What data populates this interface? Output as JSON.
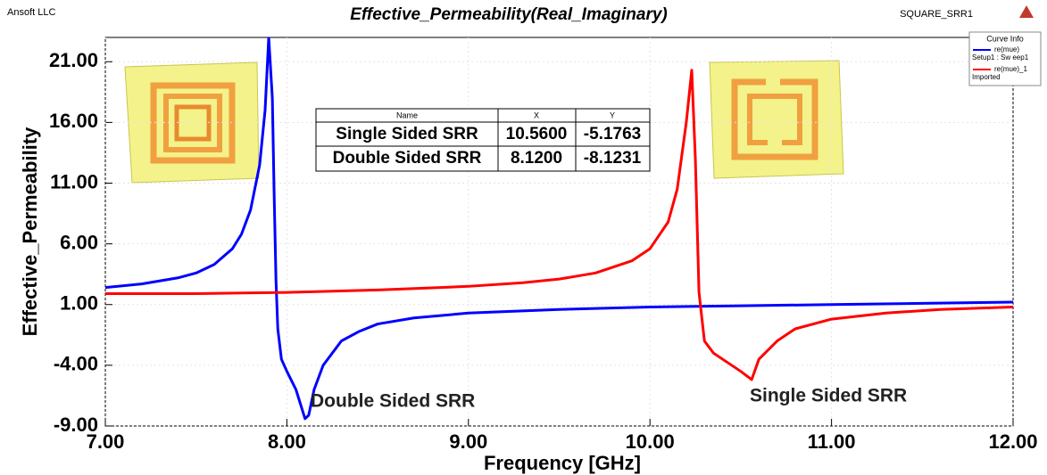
{
  "chart_data": {
    "type": "line",
    "company": "Ansoft LLC",
    "title": "Effective_Permeability(Real_Imaginary)",
    "design": "SQUARE_SRR1",
    "x_label": "Frequency [GHz]",
    "y_label": "Effective_Permeability",
    "xlim": [
      7,
      12
    ],
    "ylim": [
      -9,
      23
    ],
    "xticks": [
      {
        "value": 7,
        "label": "7.00"
      },
      {
        "value": 8,
        "label": "8.00"
      },
      {
        "value": 9,
        "label": "9.00"
      },
      {
        "value": 10,
        "label": "10.00"
      },
      {
        "value": 11,
        "label": "11.00"
      },
      {
        "value": 12,
        "label": "12.00"
      }
    ],
    "yticks": [
      {
        "value": -9,
        "label": "-9.00"
      },
      {
        "value": -4,
        "label": "-4.00"
      },
      {
        "value": 1,
        "label": "1.00"
      },
      {
        "value": 6,
        "label": "6.00"
      },
      {
        "value": 11,
        "label": "11.00"
      },
      {
        "value": 16,
        "label": "16.00"
      },
      {
        "value": 21,
        "label": "21.00"
      }
    ],
    "grid": true,
    "legend_title": "Curve Info",
    "legend_position": "top-right",
    "series": [
      {
        "name": "re(mue)",
        "source": "Setup1 : Sw eep1",
        "color": "#0000ff",
        "x": [
          7.0,
          7.2,
          7.4,
          7.5,
          7.6,
          7.7,
          7.75,
          7.8,
          7.85,
          7.88,
          7.9,
          7.92,
          7.93,
          7.94,
          7.95,
          7.97,
          8.0,
          8.05,
          8.1,
          8.12,
          8.15,
          8.2,
          8.3,
          8.4,
          8.5,
          8.7,
          9.0,
          9.5,
          10.0,
          10.5,
          11.0,
          11.5,
          12.0
        ],
        "values": [
          2.4,
          2.7,
          3.2,
          3.6,
          4.3,
          5.6,
          6.8,
          8.8,
          12.5,
          17,
          23,
          18,
          10,
          3,
          -1,
          -3.5,
          -4.5,
          -6,
          -8.4,
          -8.12,
          -6,
          -4,
          -2,
          -1.2,
          -0.6,
          -0.1,
          0.3,
          0.6,
          0.8,
          0.9,
          1.0,
          1.1,
          1.2
        ]
      },
      {
        "name": "re(mue)_1",
        "source": "Imported",
        "color": "#ff0000",
        "x": [
          7.0,
          7.5,
          8.0,
          8.5,
          9.0,
          9.3,
          9.5,
          9.7,
          9.9,
          10.0,
          10.1,
          10.15,
          10.2,
          10.23,
          10.25,
          10.27,
          10.3,
          10.35,
          10.4,
          10.5,
          10.56,
          10.6,
          10.7,
          10.8,
          11.0,
          11.3,
          11.6,
          12.0
        ],
        "values": [
          1.9,
          1.9,
          2.0,
          2.2,
          2.5,
          2.8,
          3.1,
          3.6,
          4.6,
          5.6,
          7.8,
          10.5,
          16,
          20.3,
          13,
          2,
          -2,
          -3,
          -3.5,
          -4.5,
          -5.18,
          -3.5,
          -2,
          -1,
          -0.2,
          0.3,
          0.6,
          0.8
        ]
      }
    ],
    "annotations": [
      "Double Sided SRR",
      "Single Sided SRR"
    ],
    "marker_table": {
      "header": [
        "Name",
        "X",
        "Y"
      ],
      "rows": [
        [
          "Single Sided SRR",
          "10.5600",
          "-5.1763"
        ],
        [
          "Double Sided SRR",
          "8.1200",
          "-8.1231"
        ]
      ]
    }
  }
}
